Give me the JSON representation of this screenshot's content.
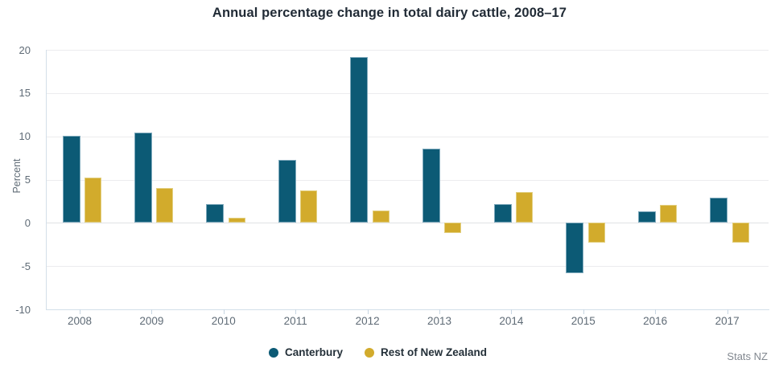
{
  "title": "Annual percentage change in total dairy cattle, 2008–17",
  "source": "Stats NZ",
  "chart_data": {
    "type": "bar",
    "title": "Annual percentage change in total dairy cattle, 2008–17",
    "categories": [
      "2008",
      "2009",
      "2010",
      "2011",
      "2012",
      "2013",
      "2014",
      "2015",
      "2016",
      "2017"
    ],
    "series": [
      {
        "name": "Canterbury",
        "color": "#0c5a75",
        "border_color": "#7ea9bc",
        "values": [
          10.1,
          10.4,
          2.2,
          7.3,
          19.2,
          8.6,
          2.2,
          -5.8,
          1.3,
          2.9
        ]
      },
      {
        "name": "Rest of New Zealand",
        "color": "#d2ab2c",
        "border_color": "#e2cf80",
        "values": [
          5.2,
          4.0,
          0.6,
          3.7,
          1.4,
          -1.2,
          3.6,
          -2.3,
          2.1,
          -2.3
        ]
      }
    ],
    "xlabel": "",
    "ylabel": "Percent",
    "yticks": [
      20,
      15,
      10,
      5,
      0,
      -5,
      -10
    ],
    "ylim": [
      -10,
      20
    ],
    "grid": true,
    "legend_position": "bottom",
    "source_label": "Stats NZ"
  }
}
